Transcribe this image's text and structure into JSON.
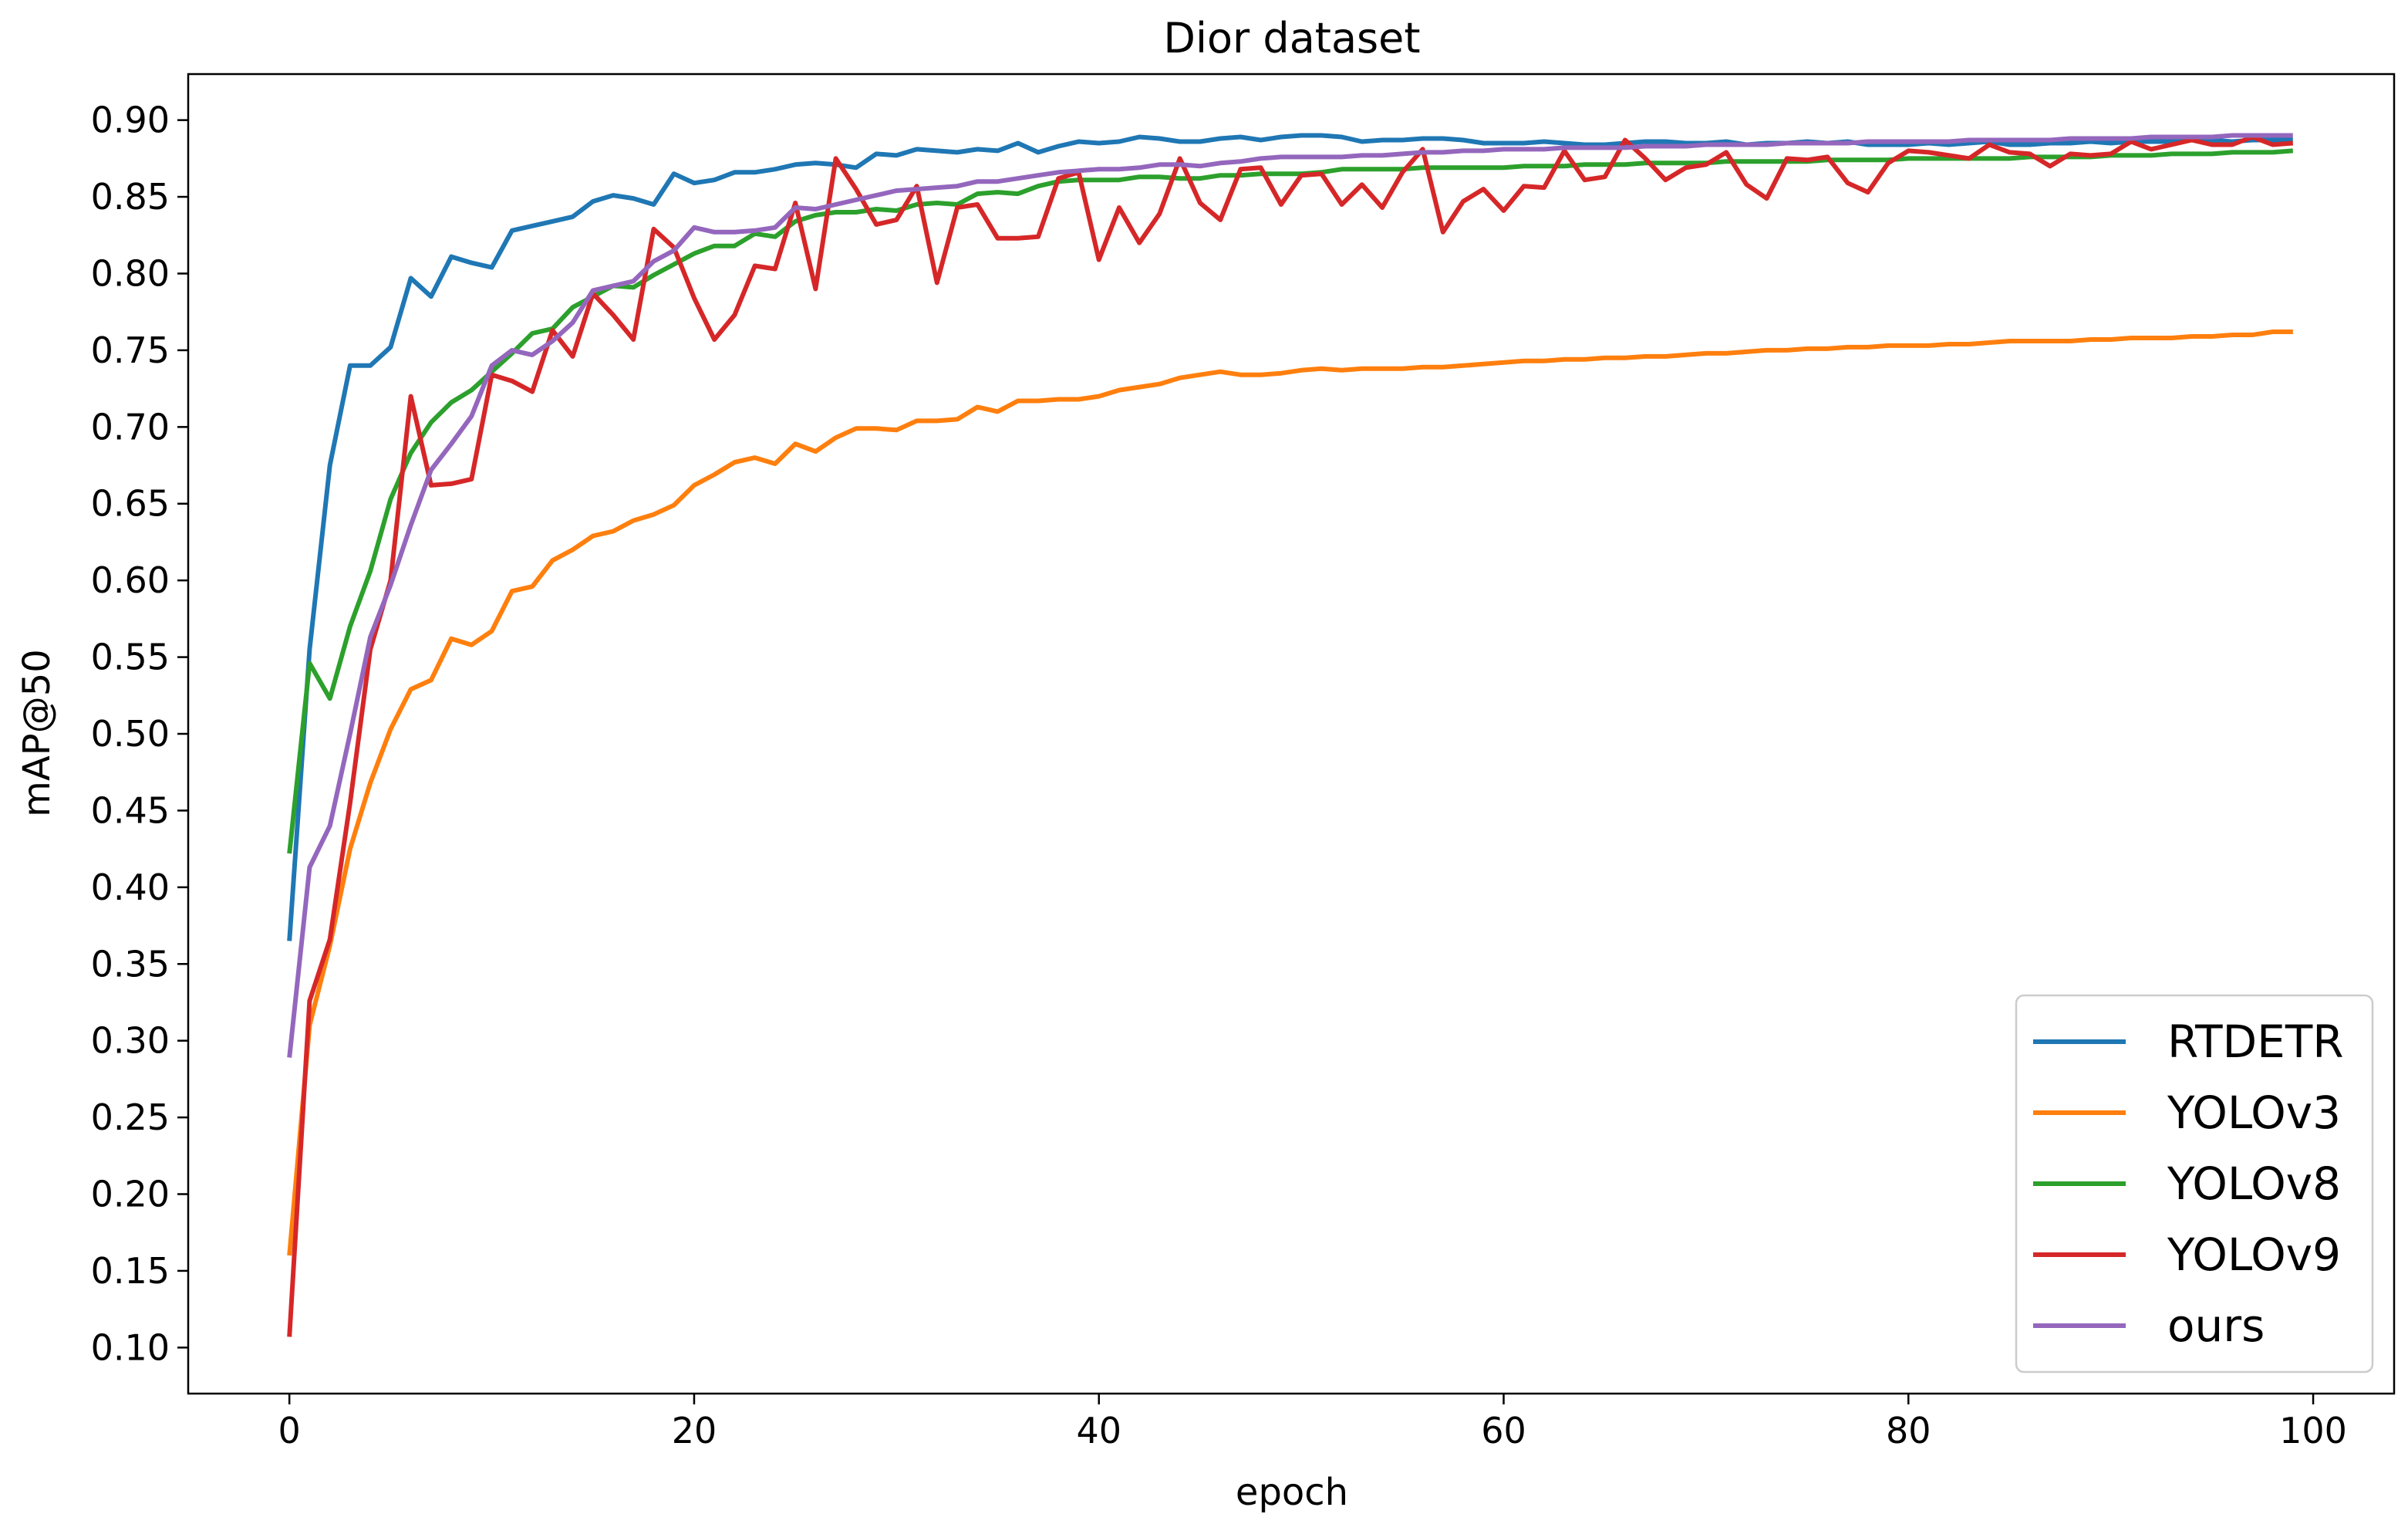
{
  "chart_data": {
    "type": "line",
    "title": "Dior dataset",
    "xlabel": "epoch",
    "ylabel": "mAP@50",
    "xlim": [
      -5,
      104
    ],
    "ylim": [
      0.07,
      0.93
    ],
    "xticks": [
      0,
      20,
      40,
      60,
      80,
      100
    ],
    "xtick_labels": [
      "0",
      "20",
      "40",
      "60",
      "80",
      "100"
    ],
    "yticks": [
      0.1,
      0.15,
      0.2,
      0.25,
      0.3,
      0.35,
      0.4,
      0.45,
      0.5,
      0.55,
      0.6,
      0.65,
      0.7,
      0.75,
      0.8,
      0.85,
      0.9
    ],
    "ytick_labels": [
      "0.10",
      "0.15",
      "0.20",
      "0.25",
      "0.30",
      "0.35",
      "0.40",
      "0.45",
      "0.50",
      "0.55",
      "0.60",
      "0.65",
      "0.70",
      "0.75",
      "0.80",
      "0.85",
      "0.90"
    ],
    "grid": false,
    "legend_position": "lower-right",
    "series": [
      {
        "name": "RTDETR",
        "color": "#1f77b4",
        "x": [
          0,
          1,
          2,
          3,
          4,
          5,
          6,
          7,
          8,
          9,
          10,
          11,
          12,
          13,
          14,
          15,
          16,
          17,
          18,
          19,
          20,
          21,
          22,
          23,
          24,
          25,
          26,
          27,
          28,
          29,
          30,
          31,
          32,
          33,
          34,
          35,
          36,
          37,
          38,
          39,
          40,
          41,
          42,
          43,
          44,
          45,
          46,
          47,
          48,
          49,
          50,
          51,
          52,
          53,
          54,
          55,
          56,
          57,
          58,
          59,
          60,
          61,
          62,
          63,
          64,
          65,
          66,
          67,
          68,
          69,
          70,
          71,
          72,
          73,
          74,
          75,
          76,
          77,
          78,
          79,
          80,
          81,
          82,
          83,
          84,
          85,
          86,
          87,
          88,
          89,
          90,
          91,
          92,
          93,
          94,
          95,
          96,
          97,
          98,
          99
        ],
        "values": [
          0.365,
          0.555,
          0.675,
          0.74,
          0.74,
          0.752,
          0.797,
          0.785,
          0.811,
          0.807,
          0.804,
          0.828,
          0.831,
          0.834,
          0.837,
          0.847,
          0.851,
          0.849,
          0.845,
          0.865,
          0.859,
          0.861,
          0.866,
          0.866,
          0.868,
          0.871,
          0.872,
          0.871,
          0.869,
          0.878,
          0.877,
          0.881,
          0.88,
          0.879,
          0.881,
          0.88,
          0.885,
          0.879,
          0.883,
          0.886,
          0.885,
          0.886,
          0.889,
          0.888,
          0.886,
          0.886,
          0.888,
          0.889,
          0.887,
          0.889,
          0.89,
          0.89,
          0.889,
          0.886,
          0.887,
          0.887,
          0.888,
          0.888,
          0.887,
          0.885,
          0.885,
          0.885,
          0.886,
          0.885,
          0.884,
          0.884,
          0.885,
          0.886,
          0.886,
          0.885,
          0.885,
          0.886,
          0.884,
          0.885,
          0.885,
          0.886,
          0.885,
          0.886,
          0.884,
          0.884,
          0.884,
          0.885,
          0.884,
          0.885,
          0.886,
          0.884,
          0.884,
          0.885,
          0.885,
          0.886,
          0.885,
          0.886,
          0.886,
          0.886,
          0.887,
          0.887,
          0.886,
          0.887,
          0.887,
          0.887
        ]
      },
      {
        "name": "YOLOv3",
        "color": "#ff7f0e",
        "x": [
          0,
          1,
          2,
          3,
          4,
          5,
          6,
          7,
          8,
          9,
          10,
          11,
          12,
          13,
          14,
          15,
          16,
          17,
          18,
          19,
          20,
          21,
          22,
          23,
          24,
          25,
          26,
          27,
          28,
          29,
          30,
          31,
          32,
          33,
          34,
          35,
          36,
          37,
          38,
          39,
          40,
          41,
          42,
          43,
          44,
          45,
          46,
          47,
          48,
          49,
          50,
          51,
          52,
          53,
          54,
          55,
          56,
          57,
          58,
          59,
          60,
          61,
          62,
          63,
          64,
          65,
          66,
          67,
          68,
          69,
          70,
          71,
          72,
          73,
          74,
          75,
          76,
          77,
          78,
          79,
          80,
          81,
          82,
          83,
          84,
          85,
          86,
          87,
          88,
          89,
          90,
          91,
          92,
          93,
          94,
          95,
          96,
          97,
          98,
          99
        ],
        "values": [
          0.16,
          0.31,
          0.362,
          0.425,
          0.468,
          0.503,
          0.529,
          0.535,
          0.562,
          0.558,
          0.567,
          0.593,
          0.596,
          0.613,
          0.62,
          0.629,
          0.632,
          0.639,
          0.643,
          0.649,
          0.662,
          0.669,
          0.677,
          0.68,
          0.676,
          0.689,
          0.684,
          0.693,
          0.699,
          0.699,
          0.698,
          0.704,
          0.704,
          0.705,
          0.713,
          0.71,
          0.717,
          0.717,
          0.718,
          0.718,
          0.72,
          0.724,
          0.726,
          0.728,
          0.732,
          0.734,
          0.736,
          0.734,
          0.734,
          0.735,
          0.737,
          0.738,
          0.737,
          0.738,
          0.738,
          0.738,
          0.739,
          0.739,
          0.74,
          0.741,
          0.742,
          0.743,
          0.743,
          0.744,
          0.744,
          0.745,
          0.745,
          0.746,
          0.746,
          0.747,
          0.748,
          0.748,
          0.749,
          0.75,
          0.75,
          0.751,
          0.751,
          0.752,
          0.752,
          0.753,
          0.753,
          0.753,
          0.754,
          0.754,
          0.755,
          0.756,
          0.756,
          0.756,
          0.756,
          0.757,
          0.757,
          0.758,
          0.758,
          0.758,
          0.759,
          0.759,
          0.76,
          0.76,
          0.762,
          0.762
        ]
      },
      {
        "name": "YOLOv8",
        "color": "#2ca02c",
        "x": [
          0,
          1,
          2,
          3,
          4,
          5,
          6,
          7,
          8,
          9,
          10,
          11,
          12,
          13,
          14,
          15,
          16,
          17,
          18,
          19,
          20,
          21,
          22,
          23,
          24,
          25,
          26,
          27,
          28,
          29,
          30,
          31,
          32,
          33,
          34,
          35,
          36,
          37,
          38,
          39,
          40,
          41,
          42,
          43,
          44,
          45,
          46,
          47,
          48,
          49,
          50,
          51,
          52,
          53,
          54,
          55,
          56,
          57,
          58,
          59,
          60,
          61,
          62,
          63,
          64,
          65,
          66,
          67,
          68,
          69,
          70,
          71,
          72,
          73,
          74,
          75,
          76,
          77,
          78,
          79,
          80,
          81,
          82,
          83,
          84,
          85,
          86,
          87,
          88,
          89,
          90,
          91,
          92,
          93,
          94,
          95,
          96,
          97,
          98,
          99
        ],
        "values": [
          0.422,
          0.546,
          0.523,
          0.57,
          0.606,
          0.653,
          0.683,
          0.703,
          0.716,
          0.724,
          0.736,
          0.748,
          0.761,
          0.764,
          0.778,
          0.785,
          0.792,
          0.791,
          0.799,
          0.806,
          0.813,
          0.818,
          0.818,
          0.826,
          0.824,
          0.834,
          0.838,
          0.84,
          0.84,
          0.842,
          0.841,
          0.845,
          0.846,
          0.845,
          0.852,
          0.853,
          0.852,
          0.857,
          0.86,
          0.861,
          0.861,
          0.861,
          0.863,
          0.863,
          0.862,
          0.862,
          0.864,
          0.864,
          0.865,
          0.865,
          0.865,
          0.866,
          0.868,
          0.868,
          0.868,
          0.868,
          0.869,
          0.869,
          0.869,
          0.869,
          0.869,
          0.87,
          0.87,
          0.87,
          0.871,
          0.871,
          0.871,
          0.872,
          0.872,
          0.872,
          0.872,
          0.873,
          0.873,
          0.873,
          0.873,
          0.873,
          0.874,
          0.874,
          0.874,
          0.874,
          0.875,
          0.875,
          0.875,
          0.875,
          0.875,
          0.875,
          0.876,
          0.876,
          0.876,
          0.876,
          0.877,
          0.877,
          0.877,
          0.878,
          0.878,
          0.878,
          0.879,
          0.879,
          0.879,
          0.88
        ]
      },
      {
        "name": "YOLOv9",
        "color": "#d62728",
        "x": [
          0,
          1,
          2,
          3,
          4,
          5,
          6,
          7,
          8,
          9,
          10,
          11,
          12,
          13,
          14,
          15,
          16,
          17,
          18,
          19,
          20,
          21,
          22,
          23,
          24,
          25,
          26,
          27,
          28,
          29,
          30,
          31,
          32,
          33,
          34,
          35,
          36,
          37,
          38,
          39,
          40,
          41,
          42,
          43,
          44,
          45,
          46,
          47,
          48,
          49,
          50,
          51,
          52,
          53,
          54,
          55,
          56,
          57,
          58,
          59,
          60,
          61,
          62,
          63,
          64,
          65,
          66,
          67,
          68,
          69,
          70,
          71,
          72,
          73,
          74,
          75,
          76,
          77,
          78,
          79,
          80,
          81,
          82,
          83,
          84,
          85,
          86,
          87,
          88,
          89,
          90,
          91,
          92,
          93,
          94,
          95,
          96,
          97,
          98,
          99
        ],
        "values": [
          0.107,
          0.326,
          0.366,
          0.455,
          0.555,
          0.6,
          0.72,
          0.662,
          0.663,
          0.666,
          0.734,
          0.73,
          0.723,
          0.763,
          0.746,
          0.787,
          0.773,
          0.757,
          0.829,
          0.817,
          0.784,
          0.757,
          0.773,
          0.805,
          0.803,
          0.846,
          0.79,
          0.875,
          0.855,
          0.832,
          0.835,
          0.857,
          0.794,
          0.843,
          0.845,
          0.823,
          0.823,
          0.824,
          0.862,
          0.866,
          0.809,
          0.843,
          0.82,
          0.839,
          0.875,
          0.846,
          0.835,
          0.868,
          0.869,
          0.845,
          0.864,
          0.865,
          0.845,
          0.858,
          0.843,
          0.866,
          0.881,
          0.827,
          0.847,
          0.855,
          0.841,
          0.857,
          0.856,
          0.88,
          0.861,
          0.863,
          0.887,
          0.875,
          0.861,
          0.869,
          0.871,
          0.879,
          0.858,
          0.849,
          0.875,
          0.874,
          0.876,
          0.859,
          0.853,
          0.872,
          0.88,
          0.879,
          0.877,
          0.875,
          0.884,
          0.879,
          0.878,
          0.87,
          0.878,
          0.877,
          0.878,
          0.886,
          0.881,
          0.884,
          0.887,
          0.884,
          0.884,
          0.889,
          0.884,
          0.885
        ]
      },
      {
        "name": "ours",
        "color": "#9467bd",
        "x": [
          0,
          1,
          2,
          3,
          4,
          5,
          6,
          7,
          8,
          9,
          10,
          11,
          12,
          13,
          14,
          15,
          16,
          17,
          18,
          19,
          20,
          21,
          22,
          23,
          24,
          25,
          26,
          27,
          28,
          29,
          30,
          31,
          32,
          33,
          34,
          35,
          36,
          37,
          38,
          39,
          40,
          41,
          42,
          43,
          44,
          45,
          46,
          47,
          48,
          49,
          50,
          51,
          52,
          53,
          54,
          55,
          56,
          57,
          58,
          59,
          60,
          61,
          62,
          63,
          64,
          65,
          66,
          67,
          68,
          69,
          70,
          71,
          72,
          73,
          74,
          75,
          76,
          77,
          78,
          79,
          80,
          81,
          82,
          83,
          84,
          85,
          86,
          87,
          88,
          89,
          90,
          91,
          92,
          93,
          94,
          95,
          96,
          97,
          98,
          99
        ],
        "values": [
          0.289,
          0.413,
          0.44,
          0.5,
          0.563,
          0.597,
          0.636,
          0.672,
          0.689,
          0.707,
          0.74,
          0.75,
          0.747,
          0.756,
          0.768,
          0.789,
          0.792,
          0.795,
          0.808,
          0.815,
          0.83,
          0.827,
          0.827,
          0.828,
          0.83,
          0.843,
          0.842,
          0.845,
          0.848,
          0.851,
          0.854,
          0.855,
          0.856,
          0.857,
          0.86,
          0.86,
          0.862,
          0.864,
          0.866,
          0.867,
          0.868,
          0.868,
          0.869,
          0.871,
          0.871,
          0.87,
          0.872,
          0.873,
          0.875,
          0.876,
          0.876,
          0.876,
          0.876,
          0.877,
          0.877,
          0.878,
          0.879,
          0.879,
          0.88,
          0.88,
          0.881,
          0.881,
          0.881,
          0.882,
          0.882,
          0.882,
          0.882,
          0.883,
          0.883,
          0.883,
          0.884,
          0.884,
          0.884,
          0.884,
          0.885,
          0.885,
          0.885,
          0.885,
          0.886,
          0.886,
          0.886,
          0.886,
          0.886,
          0.887,
          0.887,
          0.887,
          0.887,
          0.887,
          0.888,
          0.888,
          0.888,
          0.888,
          0.889,
          0.889,
          0.889,
          0.889,
          0.89,
          0.89,
          0.89,
          0.89
        ]
      }
    ]
  }
}
